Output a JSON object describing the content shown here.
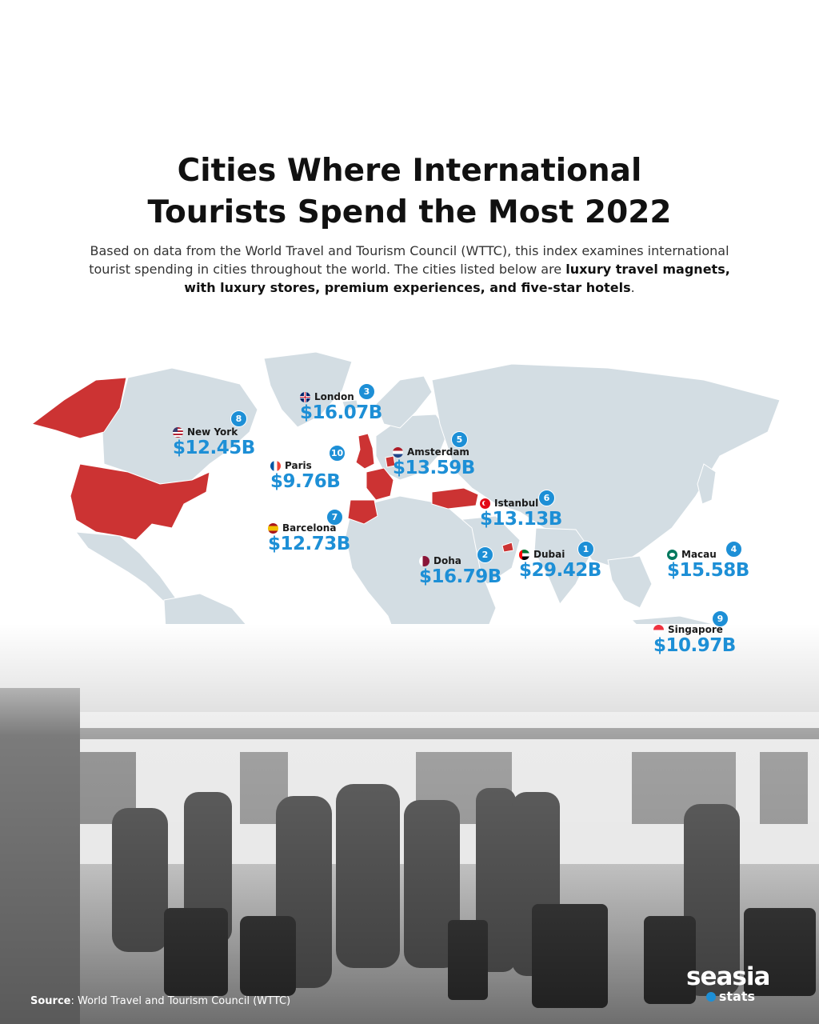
{
  "title_line1": "Cities Where International",
  "title_line2": "Tourists Spend the Most 2022",
  "subtitle_plain": "Based on data from the World Travel and Tourism Council (WTTC), this index examines international tourist spending in cities throughout the world. The cities listed below are ",
  "subtitle_bold": "luxury travel magnets, with luxury stores, premium experiences, and five-star hotels",
  "subtitle_end": ".",
  "colors": {
    "accent": "#1d8fd6",
    "highlight": "#cc3333",
    "land": "#d3dde3"
  },
  "cities": [
    {
      "rank": "1",
      "name": "Dubai",
      "value": "$29.42B",
      "flag": "flag-uae-icon"
    },
    {
      "rank": "2",
      "name": "Doha",
      "value": "$16.79B",
      "flag": "flag-qatar-icon"
    },
    {
      "rank": "3",
      "name": "London",
      "value": "$16.07B",
      "flag": "flag-uk-icon"
    },
    {
      "rank": "4",
      "name": "Macau",
      "value": "$15.58B",
      "flag": "flag-macau-icon"
    },
    {
      "rank": "5",
      "name": "Amsterdam",
      "value": "$13.59B",
      "flag": "flag-netherlands-icon"
    },
    {
      "rank": "6",
      "name": "Istanbul",
      "value": "$13.13B",
      "flag": "flag-turkey-icon"
    },
    {
      "rank": "7",
      "name": "Barcelona",
      "value": "$12.73B",
      "flag": "flag-spain-icon"
    },
    {
      "rank": "8",
      "name": "New York",
      "value": "$12.45B",
      "flag": "flag-usa-icon"
    },
    {
      "rank": "9",
      "name": "Singapore",
      "value": "$10.97B",
      "flag": "flag-singapore-icon"
    },
    {
      "rank": "10",
      "name": "Paris",
      "value": "$9.76B",
      "flag": "flag-france-icon"
    }
  ],
  "source_label": "Source",
  "source_text": ": World Travel and Tourism Council (WTTC)",
  "brand_main": "seasia",
  "brand_sub": "stats"
}
